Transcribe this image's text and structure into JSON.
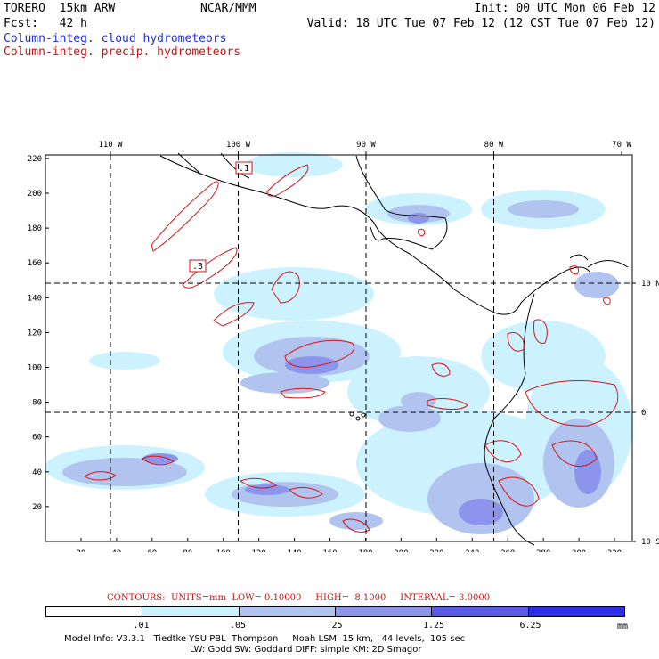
{
  "header": {
    "line1_left": "TORERO  15km ARW",
    "line1_center": "NCAR/MMM",
    "line1_right": "Init: 00 UTC Mon 06 Feb 12",
    "line2_left": "Fcst:   42 h",
    "line2_right": "Valid: 18 UTC Tue 07 Feb 12 (12 CST Tue 07 Feb 12)",
    "field1": "Column-integ. cloud hydrometeors",
    "field2": "Column-integ. precip. hydrometeors"
  },
  "map": {
    "lon_labels": [
      {
        "text": "110 W",
        "lon": -110
      },
      {
        "text": "100 W",
        "lon": -100
      },
      {
        "text": "90 W",
        "lon": -90
      },
      {
        "text": "80 W",
        "lon": -80
      },
      {
        "text": "70 W",
        "lon": -70
      }
    ],
    "lat_labels": [
      {
        "text": "10 N",
        "lat": 10
      },
      {
        "text": "0",
        "lat": 0
      },
      {
        "text": "10 S",
        "lat": -10
      }
    ],
    "grid_x_ticks": [
      20,
      40,
      60,
      80,
      100,
      120,
      140,
      160,
      180,
      200,
      220,
      240,
      260,
      280,
      300,
      320
    ],
    "grid_y_ticks": [
      20,
      40,
      60,
      80,
      100,
      120,
      140,
      160,
      180,
      200,
      220
    ],
    "contour_labels": [
      ".1",
      ".3"
    ]
  },
  "legend": {
    "contours_text": "CONTOURS:  UNITS=mm  LOW= 0.10000     HIGH=  8.1000     INTERVAL= 3.0000",
    "bins": [
      "",
      ".01",
      ".05",
      ".25",
      "1.25",
      "6.25",
      ""
    ],
    "colors": [
      "#ffffff",
      "#ccf2ff",
      "#b0c4ef",
      "#8d94ec",
      "#5b5be6",
      "#2d2de6"
    ],
    "unit": "mm"
  },
  "footer": {
    "line1": "Model Info: V3.3.1   Tiedtke YSU PBL  Thompson     Noah LSM  15 km,   44 levels,  105 sec",
    "line2": "LW: Godd SW: Goddard DIFF: simple KM: 2D Smagor"
  }
}
